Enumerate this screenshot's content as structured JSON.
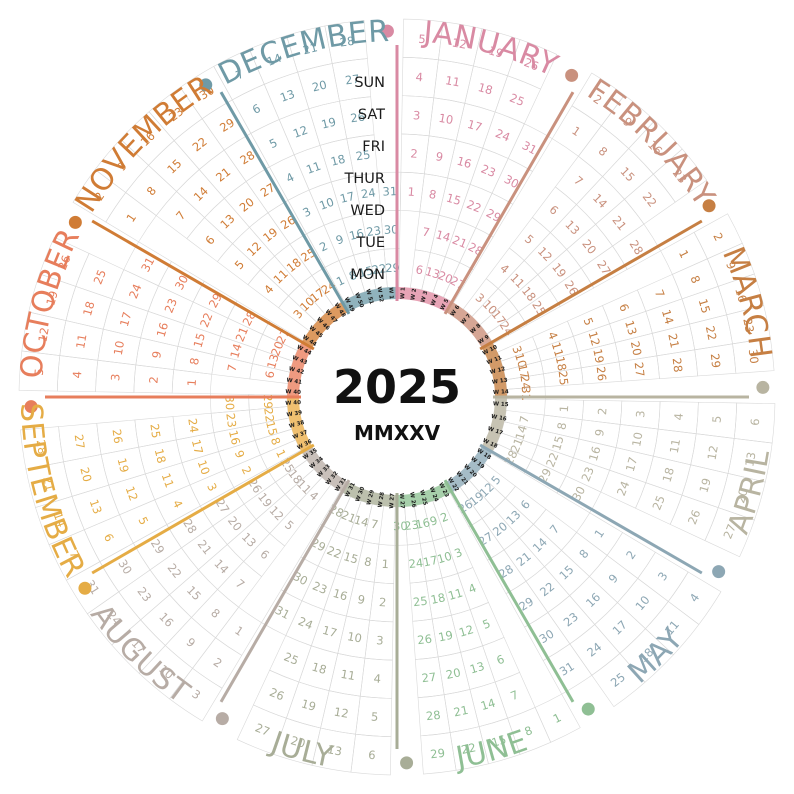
{
  "year": "2025",
  "roman": "MMXXV",
  "weekdays": [
    "SUN",
    "SAT",
    "FRI",
    "THUR",
    "WED",
    "TUE",
    "MON"
  ],
  "months": [
    {
      "name": "JANUARY",
      "color": "#d98aa3",
      "band": "#e7a4b6",
      "weeks": [
        "W 1",
        "W 2",
        "W 3",
        "W 4",
        "W 5"
      ]
    },
    {
      "name": "FEBRUARY",
      "color": "#c9917e",
      "band": "#d6a695",
      "weeks": [
        "W 6",
        "W 7",
        "W 8",
        "W 9"
      ]
    },
    {
      "name": "MARCH",
      "color": "#c67f43",
      "band": "#d29a68",
      "weeks": [
        "W 10",
        "W 11",
        "W 12",
        "W 13",
        "W 14"
      ]
    },
    {
      "name": "APRIL",
      "color": "#b8b4a1",
      "band": "#c7c3b3",
      "weeks": [
        "W 15",
        "W 16",
        "W 17",
        "W 18"
      ]
    },
    {
      "name": "MAY",
      "color": "#8da7b4",
      "band": "#a5bcc7",
      "weeks": [
        "W 18",
        "W 19",
        "W 20",
        "W 21",
        "W 22"
      ]
    },
    {
      "name": "JUNE",
      "color": "#8fbf94",
      "band": "#a7d0ab",
      "weeks": [
        "W 23",
        "W 24",
        "W 25",
        "W 26",
        "W 27"
      ]
    },
    {
      "name": "JULY",
      "color": "#a8ad97",
      "band": "#bcc0ad",
      "weeks": [
        "W 27",
        "W 28",
        "W 29",
        "W 30",
        "W 31"
      ]
    },
    {
      "name": "AUGUST",
      "color": "#b7aca5",
      "band": "#c9c0ba",
      "weeks": [
        "W 31",
        "W 32",
        "W 33",
        "W 34",
        "W 35"
      ]
    },
    {
      "name": "SEPTEMBER",
      "color": "#e5ac45",
      "band": "#f0c070",
      "weeks": [
        "W 36",
        "W 37",
        "W 38",
        "W 39",
        "W 40"
      ]
    },
    {
      "name": "OCTOBER",
      "color": "#e77e5c",
      "band": "#ef9a80",
      "weeks": [
        "W 40",
        "W 41",
        "W 42",
        "W 43",
        "W 44"
      ]
    },
    {
      "name": "NOVEMBER",
      "color": "#d07c35",
      "band": "#dd9a60",
      "weeks": [
        "W 44",
        "W 45",
        "W 46",
        "W 47",
        "W 48"
      ]
    },
    {
      "name": "DECEMBER",
      "color": "#6f9aa6",
      "band": "#90b3bd",
      "weeks": [
        "W 49",
        "W 50",
        "W 51",
        "W 52",
        "W 1"
      ]
    }
  ],
  "colors": {
    "grid": "#d9d9d9",
    "text_dark": "#111111"
  }
}
